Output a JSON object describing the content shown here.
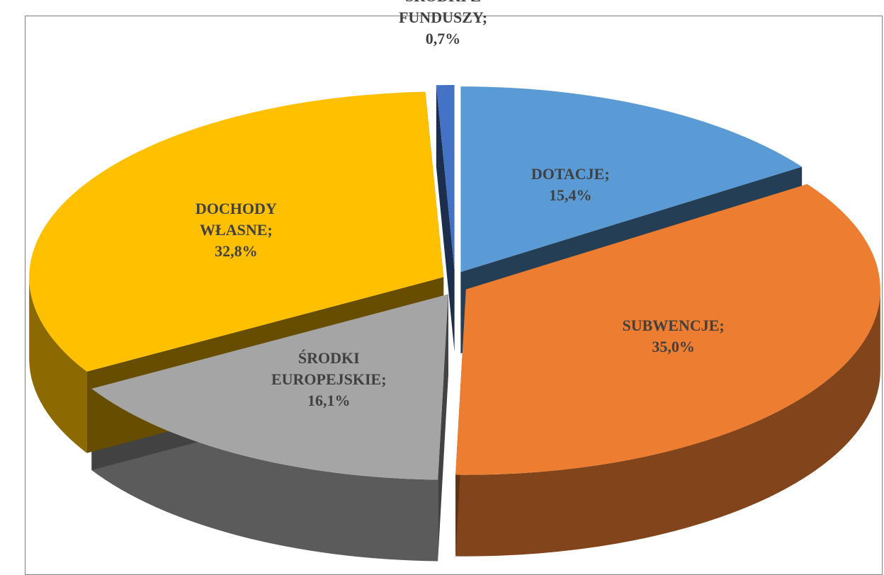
{
  "chart_data": {
    "type": "pie3d",
    "categories": [
      "DOTACJE;",
      "SUBWENCJE;",
      "ŚRODKI EUROPEJSKIE;",
      "DOCHODY WŁASNE;",
      "ŚRODKI Z FUNDUSZY;"
    ],
    "values": [
      15.4,
      35.0,
      16.1,
      32.8,
      0.7
    ],
    "value_labels": [
      "15,4%",
      "35,0%",
      "16,1%",
      "32,8%",
      "0,7%"
    ],
    "colors": [
      "#5b9bd5",
      "#ed7d31",
      "#a5a5a5",
      "#ffc000",
      "#4472c4"
    ]
  }
}
